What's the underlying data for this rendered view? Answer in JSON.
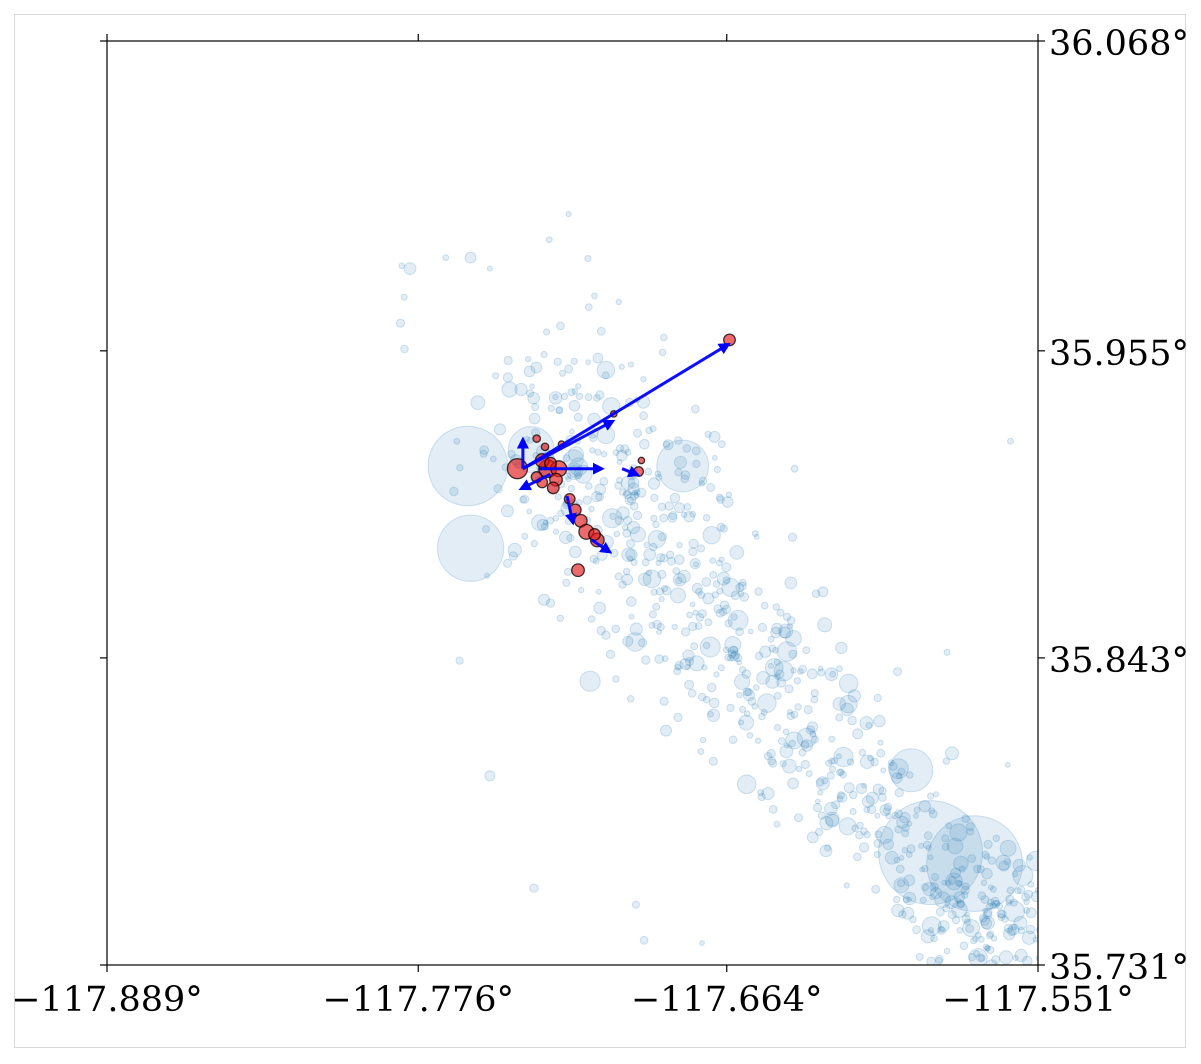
{
  "chart_data": {
    "type": "scatter",
    "title": "",
    "xlabel": "",
    "ylabel": "",
    "xlim": [
      -117.889,
      -117.551
    ],
    "ylim": [
      35.731,
      36.068
    ],
    "x_ticks": [
      -117.889,
      -117.776,
      -117.664,
      -117.551
    ],
    "x_tick_labels": [
      "−117.889°",
      "−117.776°",
      "−117.664°",
      "−117.551°"
    ],
    "y_ticks": [
      35.731,
      35.843,
      35.955,
      36.068
    ],
    "y_tick_labels": [
      "35.731°",
      "35.843°",
      "35.955°",
      "36.068°"
    ],
    "y_axis_side": "right",
    "grid": false,
    "legend": "none",
    "colors": {
      "background_events": "#1f77b4",
      "highlighted_events": "#e41a1c",
      "arrows": "#0000ff",
      "axes": "#000000"
    },
    "background_cluster": {
      "style": "translucent blue circles",
      "trend": [
        {
          "lon": -117.734,
          "lat": 35.94,
          "spread_lon": 0.02,
          "spread_lat": 0.022,
          "count": 180
        },
        {
          "lon": -117.7,
          "lat": 35.9,
          "spread_lon": 0.02,
          "spread_lat": 0.02,
          "count": 160
        },
        {
          "lon": -117.67,
          "lat": 35.86,
          "spread_lon": 0.016,
          "spread_lat": 0.018,
          "count": 130
        },
        {
          "lon": -117.64,
          "lat": 35.822,
          "spread_lon": 0.014,
          "spread_lat": 0.015,
          "count": 110
        },
        {
          "lon": -117.605,
          "lat": 35.785,
          "spread_lon": 0.014,
          "spread_lat": 0.014,
          "count": 100
        },
        {
          "lon": -117.572,
          "lat": 35.752,
          "spread_lon": 0.014,
          "spread_lat": 0.012,
          "count": 110
        }
      ],
      "large_events": [
        {
          "lon": -117.59,
          "lat": 35.772,
          "mag": 7.1
        },
        {
          "lon": -117.574,
          "lat": 35.768,
          "mag": 5.8
        },
        {
          "lon": -117.758,
          "lat": 35.913,
          "mag": 5.5
        },
        {
          "lon": -117.757,
          "lat": 35.883,
          "mag": 5.2
        },
        {
          "lon": -117.68,
          "lat": 35.913,
          "mag": 4.8
        },
        {
          "lon": -117.735,
          "lat": 35.919,
          "mag": 4.6
        },
        {
          "lon": -117.597,
          "lat": 35.802,
          "mag": 4.5
        }
      ],
      "outliers": [
        {
          "lon": -117.782,
          "lat": 35.986
        },
        {
          "lon": -117.766,
          "lat": 35.989
        },
        {
          "lon": -117.757,
          "lat": 35.989
        },
        {
          "lon": -117.75,
          "lat": 35.985
        },
        {
          "lon": -117.762,
          "lat": 35.922
        },
        {
          "lon": -117.751,
          "lat": 35.873
        },
        {
          "lon": -117.761,
          "lat": 35.842
        },
        {
          "lon": -117.75,
          "lat": 35.8
        },
        {
          "lon": -117.734,
          "lat": 35.759
        },
        {
          "lon": -117.697,
          "lat": 35.753
        },
        {
          "lon": -117.694,
          "lat": 35.74
        },
        {
          "lon": -117.673,
          "lat": 35.739
        },
        {
          "lon": -117.602,
          "lat": 35.838
        },
        {
          "lon": -117.584,
          "lat": 35.845
        },
        {
          "lon": -117.561,
          "lat": 35.922
        },
        {
          "lon": -117.562,
          "lat": 35.804
        },
        {
          "lon": -117.779,
          "lat": 35.985
        }
      ]
    },
    "highlighted_events": [
      {
        "lon": -117.74,
        "lat": 35.912,
        "mag": 4.4
      },
      {
        "lon": -117.729,
        "lat": 35.912,
        "mag": 4.0
      },
      {
        "lon": -117.725,
        "lat": 35.912,
        "mag": 3.6
      },
      {
        "lon": -117.731,
        "lat": 35.915,
        "mag": 3.2
      },
      {
        "lon": -117.726,
        "lat": 35.908,
        "mag": 3.0
      },
      {
        "lon": -117.727,
        "lat": 35.905,
        "mag": 2.8
      },
      {
        "lon": -117.731,
        "lat": 35.907,
        "mag": 2.6
      },
      {
        "lon": -117.728,
        "lat": 35.914,
        "mag": 2.8
      },
      {
        "lon": -117.733,
        "lat": 35.909,
        "mag": 2.6
      },
      {
        "lon": -117.73,
        "lat": 35.92,
        "mag": 2.0
      },
      {
        "lon": -117.733,
        "lat": 35.923,
        "mag": 2.0
      },
      {
        "lon": -117.724,
        "lat": 35.921,
        "mag": 1.8
      },
      {
        "lon": -117.721,
        "lat": 35.901,
        "mag": 2.6
      },
      {
        "lon": -117.719,
        "lat": 35.897,
        "mag": 2.8
      },
      {
        "lon": -117.717,
        "lat": 35.893,
        "mag": 3.0
      },
      {
        "lon": -117.715,
        "lat": 35.889,
        "mag": 3.4
      },
      {
        "lon": -117.711,
        "lat": 35.886,
        "mag": 3.2
      },
      {
        "lon": -117.712,
        "lat": 35.888,
        "mag": 2.8
      },
      {
        "lon": -117.718,
        "lat": 35.875,
        "mag": 3.0
      },
      {
        "lon": -117.696,
        "lat": 35.911,
        "mag": 2.4
      },
      {
        "lon": -117.695,
        "lat": 35.915,
        "mag": 1.8
      },
      {
        "lon": -117.705,
        "lat": 35.932,
        "mag": 1.8
      },
      {
        "lon": -117.663,
        "lat": 35.959,
        "mag": 2.8
      }
    ],
    "arrows": [
      {
        "from": [
          -117.738,
          35.912
        ],
        "to": [
          -117.664,
          35.957
        ]
      },
      {
        "from": [
          -117.738,
          35.912
        ],
        "to": [
          -117.706,
          35.929
        ]
      },
      {
        "from": [
          -117.738,
          35.912
        ],
        "to": [
          -117.738,
          35.922
        ]
      },
      {
        "from": [
          -117.732,
          35.912
        ],
        "to": [
          -117.71,
          35.912
        ]
      },
      {
        "from": [
          -117.702,
          35.912
        ],
        "to": [
          -117.697,
          35.91
        ]
      },
      {
        "from": [
          -117.728,
          35.91
        ],
        "to": [
          -117.738,
          35.905
        ]
      },
      {
        "from": [
          -117.722,
          35.902
        ],
        "to": [
          -117.72,
          35.893
        ]
      },
      {
        "from": [
          -117.713,
          35.886
        ],
        "to": [
          -117.707,
          35.882
        ]
      }
    ]
  }
}
